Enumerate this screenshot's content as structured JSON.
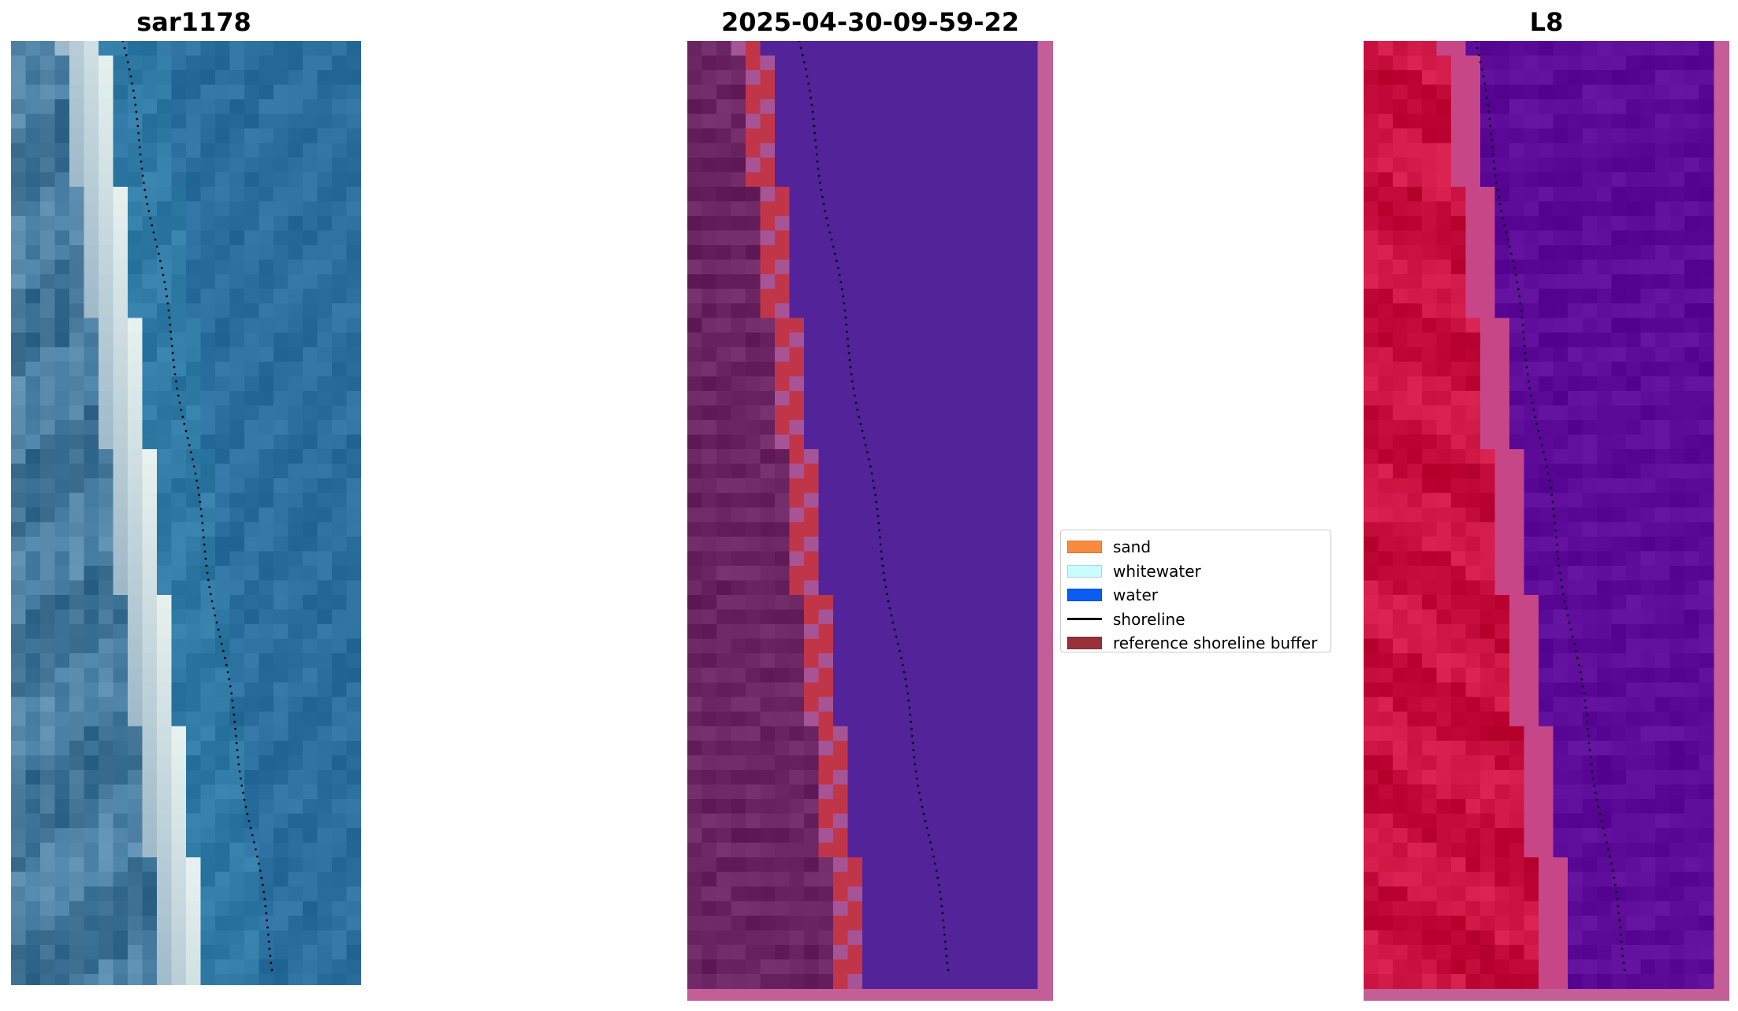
{
  "panels": [
    {
      "title": "sar1178",
      "kind": "rgb-image"
    },
    {
      "title": "2025-04-30-09-59-22",
      "kind": "classification-overlay"
    },
    {
      "title": "L8",
      "kind": "index-image"
    }
  ],
  "legend": {
    "items": [
      {
        "label": "sand",
        "type": "patch",
        "color": "#f98b3e"
      },
      {
        "label": "whitewater",
        "type": "patch",
        "color": "#c8fcff"
      },
      {
        "label": "water",
        "type": "patch",
        "color": "#0a5cf2"
      },
      {
        "label": "shoreline",
        "type": "line",
        "color": "#000000"
      },
      {
        "label": "reference shoreline buffer",
        "type": "patch",
        "color": "#99313b"
      }
    ]
  },
  "colors": {
    "sar_water": "#2a6f9e",
    "sar_land": "#3f7499",
    "sar_beach": "#e8f2ef",
    "class_water": "#53239a",
    "class_land": "#6b2462",
    "class_buffer": "#c13548",
    "class_border": "#c35e97",
    "l8_land": "#c8103f",
    "l8_water": "#5c0a98",
    "l8_mid": "#c64687"
  }
}
